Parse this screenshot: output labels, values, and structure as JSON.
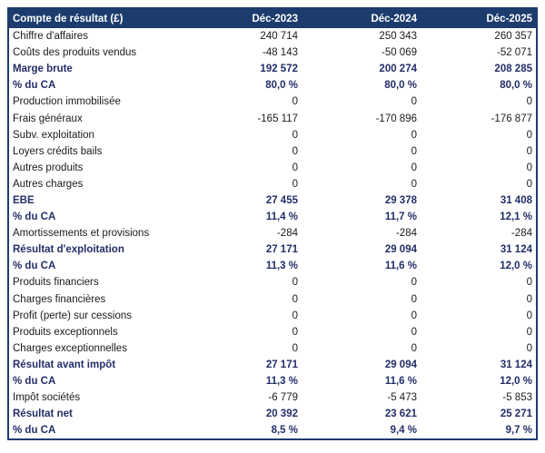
{
  "colors": {
    "header_bg": "#1d3c6e",
    "border": "#1d3c6e",
    "bold_text": "#222e68",
    "body_text": "#1a1a1a",
    "row_bg": "#ffffff"
  },
  "table": {
    "header": {
      "label": "Compte de résultat (£)",
      "columns": [
        "Déc-2023",
        "Déc-2024",
        "Déc-2025"
      ]
    },
    "rows": [
      {
        "label": "Chiffre d'affaires",
        "values": [
          "240 714",
          "250 343",
          "260 357"
        ],
        "bold": false
      },
      {
        "label": "Coûts des produits vendus",
        "values": [
          "-48 143",
          "-50 069",
          "-52 071"
        ],
        "bold": false
      },
      {
        "label": "Marge brute",
        "values": [
          "192 572",
          "200 274",
          "208 285"
        ],
        "bold": true
      },
      {
        "label": "% du CA",
        "values": [
          "80,0 %",
          "80,0 %",
          "80,0 %"
        ],
        "bold": true
      },
      {
        "label": "Production immobilisée",
        "values": [
          "0",
          "0",
          "0"
        ],
        "bold": false
      },
      {
        "label": "Frais généraux",
        "values": [
          "-165 117",
          "-170 896",
          "-176 877"
        ],
        "bold": false
      },
      {
        "label": "Subv. exploitation",
        "values": [
          "0",
          "0",
          "0"
        ],
        "bold": false
      },
      {
        "label": "Loyers crédits bails",
        "values": [
          "0",
          "0",
          "0"
        ],
        "bold": false
      },
      {
        "label": "Autres produits",
        "values": [
          "0",
          "0",
          "0"
        ],
        "bold": false
      },
      {
        "label": "Autres charges",
        "values": [
          "0",
          "0",
          "0"
        ],
        "bold": false
      },
      {
        "label": "EBE",
        "values": [
          "27 455",
          "29 378",
          "31 408"
        ],
        "bold": true
      },
      {
        "label": "% du CA",
        "values": [
          "11,4 %",
          "11,7 %",
          "12,1 %"
        ],
        "bold": true
      },
      {
        "label": "Amortissements et provisions",
        "values": [
          "-284",
          "-284",
          "-284"
        ],
        "bold": false
      },
      {
        "label": "Résultat d'exploitation",
        "values": [
          "27 171",
          "29 094",
          "31 124"
        ],
        "bold": true
      },
      {
        "label": "% du CA",
        "values": [
          "11,3 %",
          "11,6 %",
          "12,0 %"
        ],
        "bold": true
      },
      {
        "label": "Produits financiers",
        "values": [
          "0",
          "0",
          "0"
        ],
        "bold": false
      },
      {
        "label": "Charges financières",
        "values": [
          "0",
          "0",
          "0"
        ],
        "bold": false
      },
      {
        "label": "Profit (perte) sur cessions",
        "values": [
          "0",
          "0",
          "0"
        ],
        "bold": false
      },
      {
        "label": "Produits exceptionnels",
        "values": [
          "0",
          "0",
          "0"
        ],
        "bold": false
      },
      {
        "label": "Charges exceptionnelles",
        "values": [
          "0",
          "0",
          "0"
        ],
        "bold": false
      },
      {
        "label": "Résultat avant impôt",
        "values": [
          "27 171",
          "29 094",
          "31 124"
        ],
        "bold": true
      },
      {
        "label": "% du CA",
        "values": [
          "11,3 %",
          "11,6 %",
          "12,0 %"
        ],
        "bold": true
      },
      {
        "label": "Impôt sociétés",
        "values": [
          "-6 779",
          "-5 473",
          "-5 853"
        ],
        "bold": false
      },
      {
        "label": "Résultat net",
        "values": [
          "20 392",
          "23 621",
          "25 271"
        ],
        "bold": true
      },
      {
        "label": "% du CA",
        "values": [
          "8,5 %",
          "9,4 %",
          "9,7 %"
        ],
        "bold": true
      }
    ]
  }
}
